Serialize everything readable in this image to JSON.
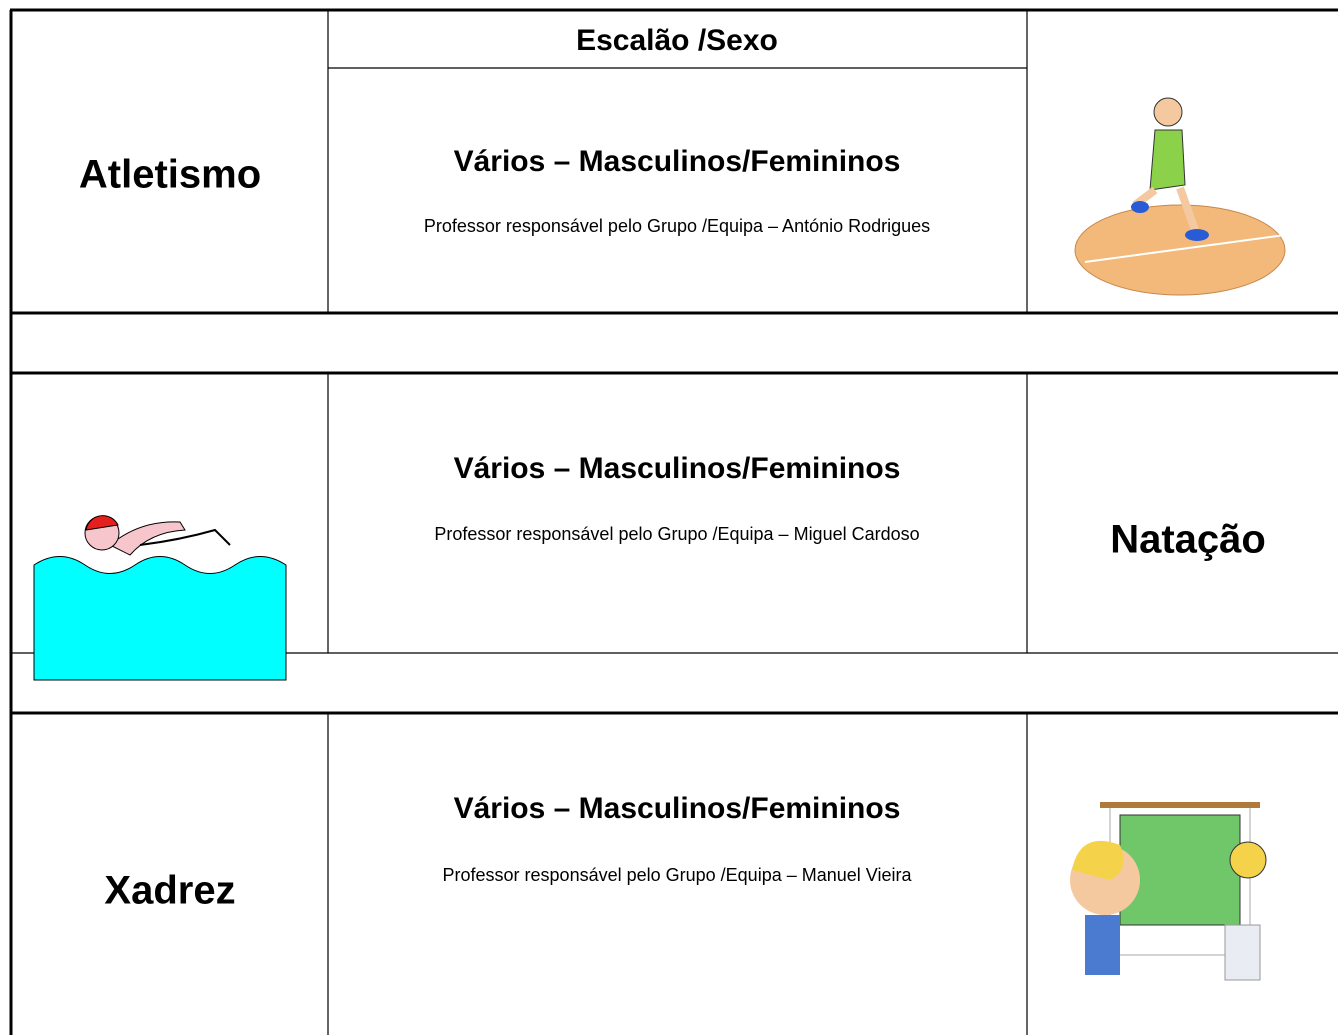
{
  "table": {
    "header": "Escalão /Sexo",
    "rows": [
      {
        "sport": "Atletismo",
        "category": "Vários – Masculinos/Femininos",
        "teacher": "Professor responsável pelo Grupo /Equipa – António Rodrigues"
      },
      {
        "sport": "Natação",
        "category": "Vários – Masculinos/Femininos",
        "teacher": "Professor responsável pelo Grupo /Equipa – Miguel Cardoso"
      },
      {
        "sport": "Xadrez",
        "category": "Vários – Masculinos/Femininos",
        "teacher": "Professor responsável pelo Grupo /Equipa – Manuel Vieira"
      }
    ]
  }
}
